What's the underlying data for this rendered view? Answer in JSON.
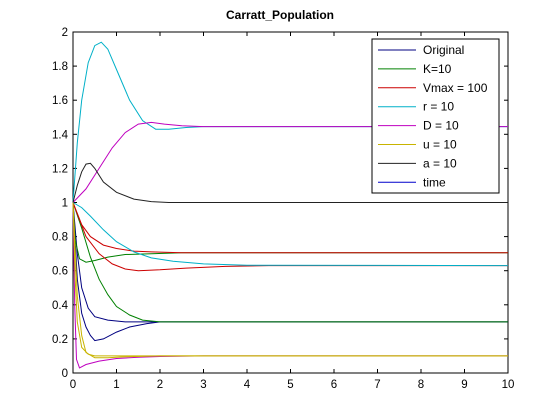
{
  "chart_data": {
    "type": "line",
    "title": "Carratt_Population",
    "xlabel": "",
    "ylabel": "",
    "xlim": [
      0,
      10
    ],
    "ylim": [
      0,
      2
    ],
    "xticks": [
      "0",
      "1",
      "2",
      "3",
      "4",
      "5",
      "6",
      "7",
      "8",
      "9",
      "10"
    ],
    "yticks": [
      "0",
      "0.2",
      "0.4",
      "0.6",
      "0.8",
      "1",
      "1.2",
      "1.4",
      "1.6",
      "1.8",
      "2"
    ],
    "grid": false,
    "legend_position": "top-right",
    "series": [
      {
        "name": "Original",
        "color": "#000080",
        "curves": [
          {
            "x": [
              0,
              0.1,
              0.2,
              0.3,
              0.4,
              0.5,
              0.7,
              1.0,
              1.3,
              1.7,
              2.0,
              3.0,
              10.0
            ],
            "y": [
              1.0,
              0.55,
              0.35,
              0.27,
              0.22,
              0.19,
              0.2,
              0.24,
              0.27,
              0.29,
              0.3,
              0.3,
              0.3
            ]
          },
          {
            "x": [
              0,
              0.1,
              0.2,
              0.35,
              0.5,
              0.8,
              1.2,
              2.0,
              10.0
            ],
            "y": [
              1.0,
              0.7,
              0.5,
              0.38,
              0.33,
              0.31,
              0.3,
              0.3,
              0.3
            ]
          }
        ]
      },
      {
        "name": "K=10",
        "color": "#008000",
        "curves": [
          {
            "x": [
              0,
              0.05,
              0.15,
              0.3,
              0.5,
              0.8,
              1.2,
              1.8,
              2.5,
              4.0,
              10.0
            ],
            "y": [
              1.0,
              0.78,
              0.67,
              0.65,
              0.66,
              0.68,
              0.695,
              0.7,
              0.705,
              0.705,
              0.705
            ]
          },
          {
            "x": [
              0,
              0.2,
              0.4,
              0.6,
              0.8,
              1.0,
              1.3,
              1.6,
              2.0,
              3.0,
              10.0
            ],
            "y": [
              1.0,
              0.85,
              0.68,
              0.55,
              0.46,
              0.39,
              0.34,
              0.31,
              0.3,
              0.3,
              0.3
            ]
          }
        ]
      },
      {
        "name": "Vmax = 100",
        "color": "#cc0000",
        "curves": [
          {
            "x": [
              0,
              0.2,
              0.4,
              0.7,
              1.0,
              1.4,
              1.8,
              2.5,
              3.5,
              10.0
            ],
            "y": [
              1.0,
              0.87,
              0.8,
              0.75,
              0.73,
              0.715,
              0.71,
              0.705,
              0.705,
              0.705
            ]
          },
          {
            "x": [
              0,
              0.3,
              0.6,
              0.9,
              1.2,
              1.5,
              2.0,
              2.6,
              3.5,
              4.5,
              10.0
            ],
            "y": [
              1.0,
              0.8,
              0.7,
              0.64,
              0.61,
              0.6,
              0.605,
              0.615,
              0.625,
              0.63,
              0.63
            ]
          }
        ]
      },
      {
        "name": "r = 10",
        "color": "#00b0c8",
        "curves": [
          {
            "x": [
              0,
              0.1,
              0.2,
              0.35,
              0.5,
              0.65,
              0.8,
              1.0,
              1.3,
              1.6,
              1.9,
              2.2,
              2.6,
              3.0,
              10.0
            ],
            "y": [
              1.0,
              1.35,
              1.6,
              1.82,
              1.92,
              1.94,
              1.9,
              1.78,
              1.6,
              1.48,
              1.43,
              1.43,
              1.44,
              1.445,
              1.445
            ]
          },
          {
            "x": [
              0,
              0.2,
              0.4,
              0.7,
              1.0,
              1.4,
              1.8,
              2.3,
              3.0,
              4.0,
              10.0
            ],
            "y": [
              1.0,
              0.97,
              0.92,
              0.84,
              0.77,
              0.71,
              0.675,
              0.655,
              0.64,
              0.632,
              0.63
            ]
          }
        ]
      },
      {
        "name": "D = 10",
        "color": "#bf00bf",
        "curves": [
          {
            "x": [
              0,
              0.3,
              0.6,
              0.9,
              1.2,
              1.5,
              1.8,
              2.1,
              2.5,
              3.0,
              10.0
            ],
            "y": [
              1.0,
              1.08,
              1.2,
              1.32,
              1.41,
              1.46,
              1.47,
              1.46,
              1.45,
              1.445,
              1.445
            ]
          },
          {
            "x": [
              0,
              0.04,
              0.08,
              0.15,
              0.3,
              0.6,
              1.0,
              1.5,
              2.0,
              3.0,
              10.0
            ],
            "y": [
              1.0,
              0.4,
              0.08,
              0.03,
              0.05,
              0.07,
              0.085,
              0.092,
              0.097,
              0.1,
              0.1
            ]
          }
        ]
      },
      {
        "name": "u = 10",
        "color": "#c8b400",
        "curves": [
          {
            "x": [
              0,
              0.05,
              0.1,
              0.2,
              0.35,
              0.5,
              0.8,
              1.2,
              2.0,
              3.0,
              10.0
            ],
            "y": [
              1.0,
              0.55,
              0.3,
              0.15,
              0.11,
              0.1,
              0.1,
              0.1,
              0.1,
              0.1,
              0.1
            ]
          },
          {
            "x": [
              0,
              0.1,
              0.2,
              0.3,
              0.5,
              0.8,
              1.2,
              2.0,
              3.0,
              10.0
            ],
            "y": [
              1.0,
              0.45,
              0.22,
              0.12,
              0.09,
              0.09,
              0.095,
              0.1,
              0.1,
              0.1
            ]
          }
        ]
      },
      {
        "name": "a = 10",
        "color": "#222222",
        "curves": [
          {
            "x": [
              0,
              0.1,
              0.2,
              0.3,
              0.4,
              0.5,
              0.7,
              1.0,
              1.4,
              1.8,
              2.2,
              3.0,
              10.0
            ],
            "y": [
              1.0,
              1.1,
              1.18,
              1.225,
              1.23,
              1.2,
              1.12,
              1.06,
              1.02,
              1.005,
              1.0,
              1.0,
              1.0
            ]
          }
        ]
      },
      {
        "name": "time",
        "color": "#0000cc",
        "curves": []
      }
    ]
  }
}
